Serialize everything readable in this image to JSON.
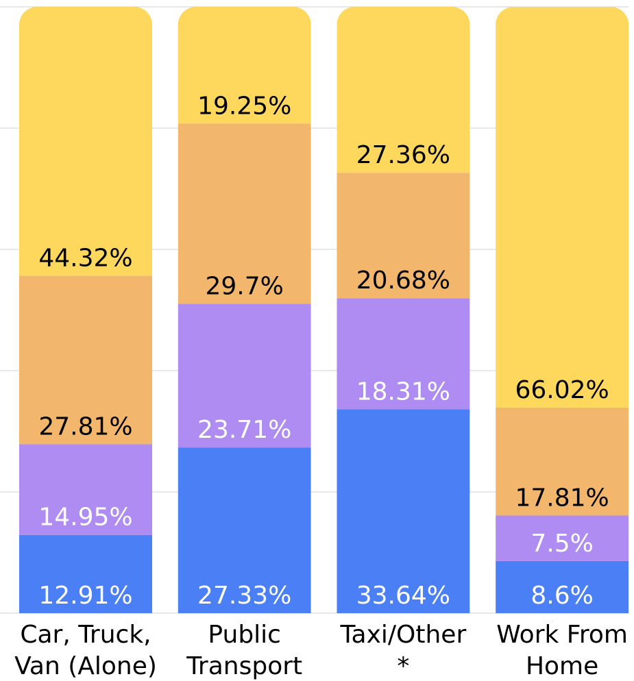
{
  "chart_data": {
    "type": "stacked_bar",
    "categories": [
      [
        "Car, Truck,",
        "Van (Alone)"
      ],
      [
        "Public",
        "Transport"
      ],
      [
        "Taxi/Other",
        "*"
      ],
      [
        "Work From",
        "Home"
      ]
    ],
    "series": [
      {
        "color": "#4a7ff5",
        "label_color": "#ffffff",
        "values": [
          12.91,
          27.33,
          33.64,
          8.6
        ]
      },
      {
        "color": "#ae8cf2",
        "label_color": "#ffffff",
        "values": [
          14.95,
          23.71,
          18.31,
          7.5
        ]
      },
      {
        "color": "#f2b66d",
        "label_color": "#000000",
        "values": [
          27.81,
          29.7,
          20.68,
          17.81
        ]
      },
      {
        "color": "#fdd85d",
        "label_color": "#000000",
        "values": [
          44.32,
          19.25,
          27.36,
          66.02
        ]
      }
    ],
    "value_labels": [
      [
        "12.91%",
        "27.33%",
        "33.64%",
        "8.6%"
      ],
      [
        "14.95%",
        "23.71%",
        "18.31%",
        "7.5%"
      ],
      [
        "27.81%",
        "29.7%",
        "20.68%",
        "17.81%"
      ],
      [
        "44.32%",
        "19.25%",
        "27.36%",
        "66.02%"
      ]
    ],
    "ylim": [
      0,
      100
    ],
    "yticks": [
      0,
      20,
      40,
      60,
      80,
      100
    ],
    "grid": true
  }
}
